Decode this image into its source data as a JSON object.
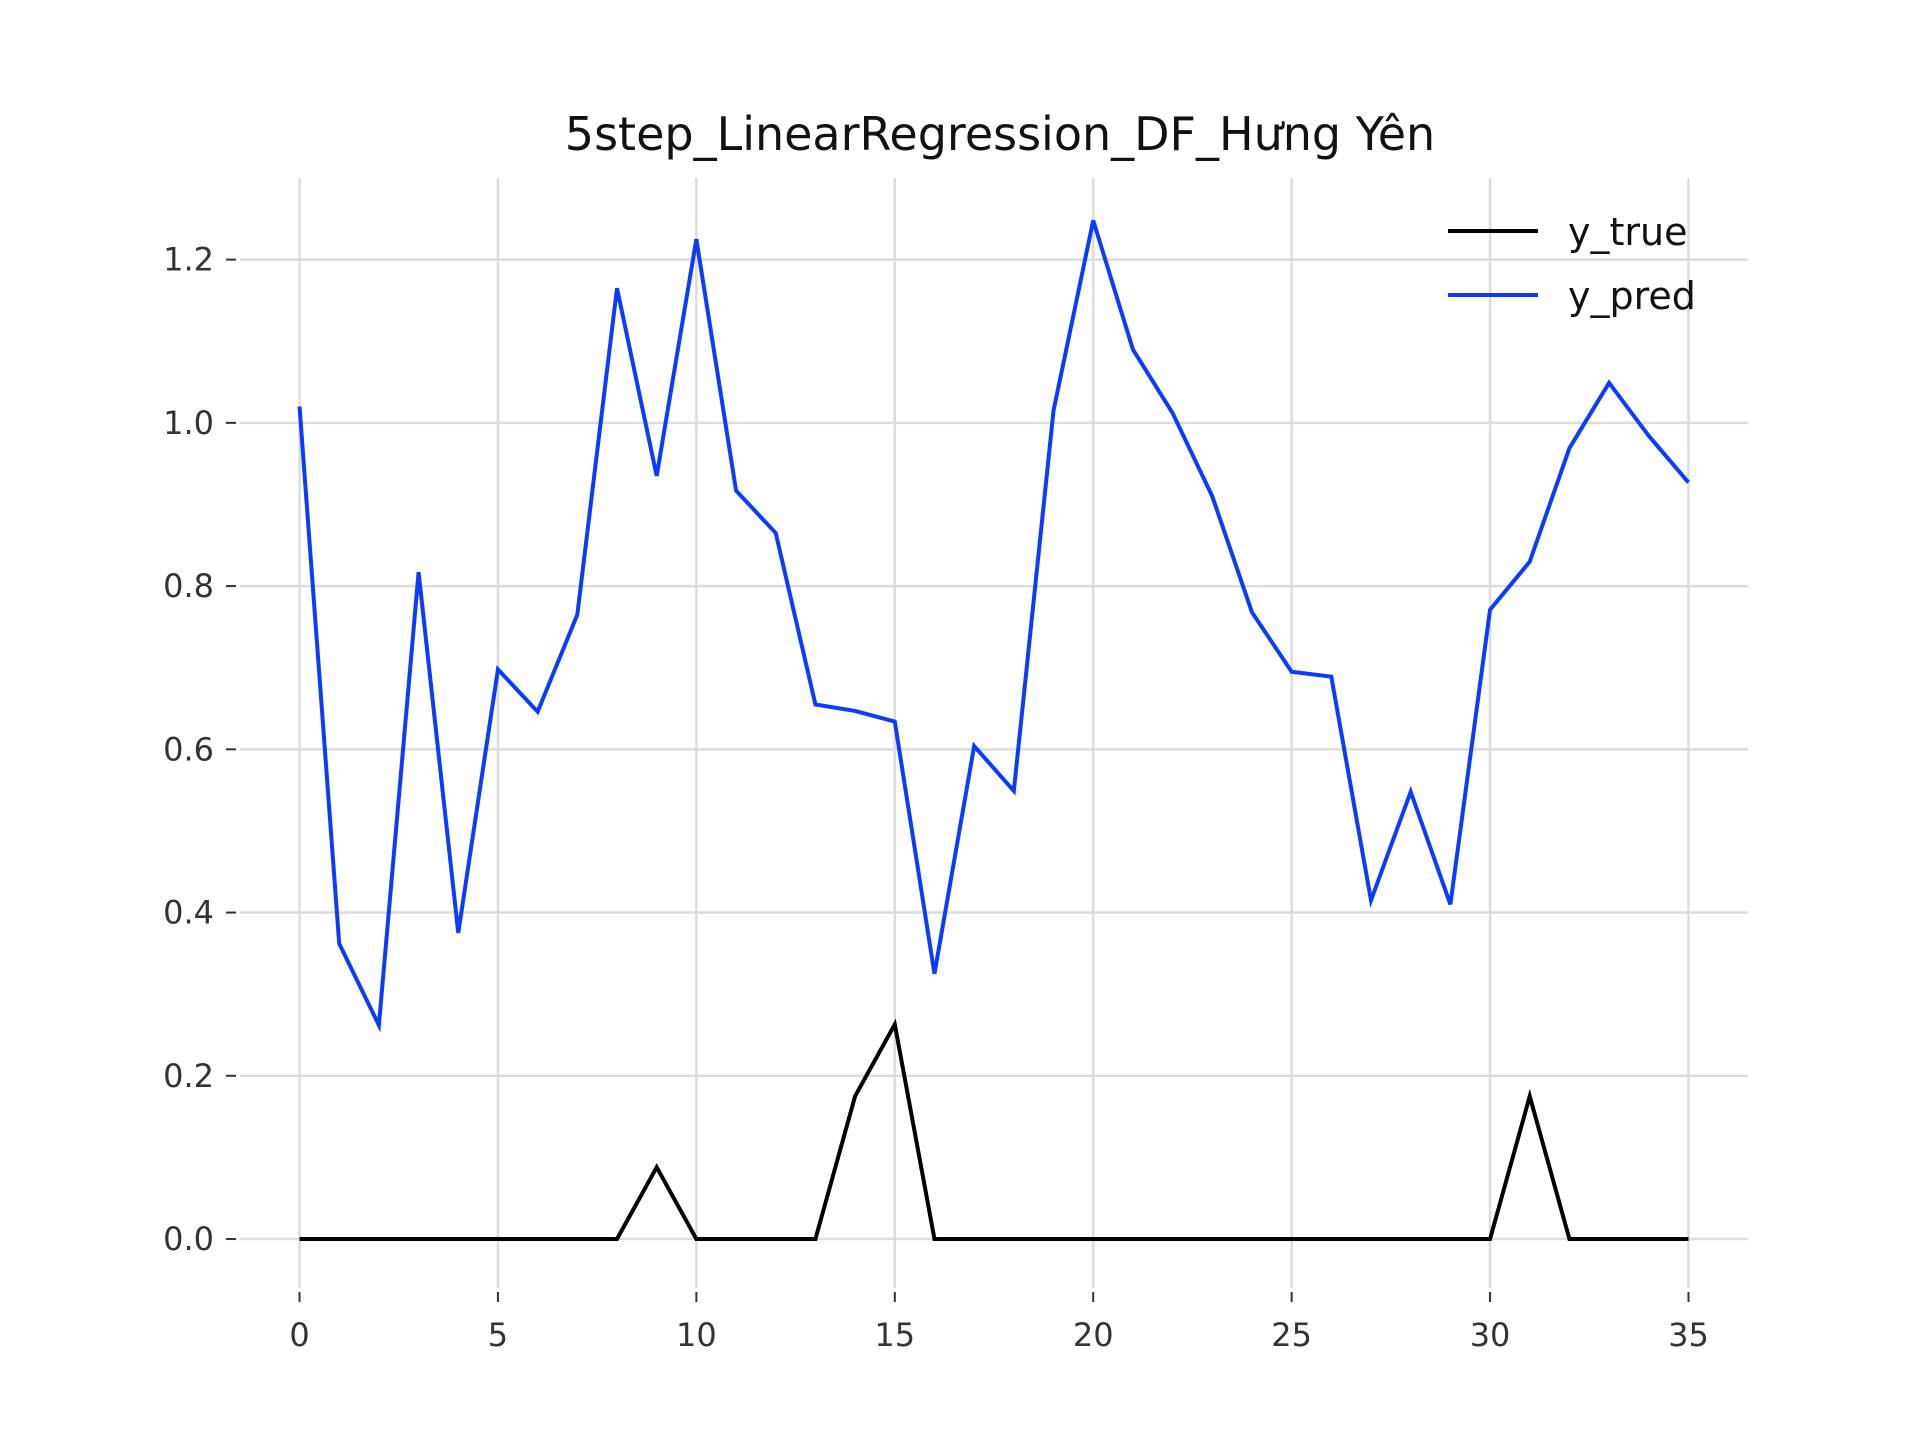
{
  "chart_data": {
    "type": "line",
    "title": "5step_LinearRegression_DF_Hưng Yên",
    "xlabel": "",
    "ylabel": "",
    "xlim": [
      -1.5,
      36.5
    ],
    "ylim": [
      -0.06,
      1.3
    ],
    "xticks": [
      0,
      5,
      10,
      15,
      20,
      25,
      30,
      35
    ],
    "xtick_labels": [
      "0",
      "5",
      "10",
      "15",
      "20",
      "25",
      "30",
      "35"
    ],
    "yticks": [
      0.0,
      0.2,
      0.4,
      0.6,
      0.8,
      1.0,
      1.2
    ],
    "ytick_labels": [
      "0.0",
      "0.2",
      "0.4",
      "0.6",
      "0.8",
      "1.0",
      "1.2"
    ],
    "grid": true,
    "legend_position": "top-right",
    "x": [
      0,
      1,
      2,
      3,
      4,
      5,
      6,
      7,
      8,
      9,
      10,
      11,
      12,
      13,
      14,
      15,
      16,
      17,
      18,
      19,
      20,
      21,
      22,
      23,
      24,
      25,
      26,
      27,
      28,
      29,
      30,
      31,
      32,
      33,
      34,
      35
    ],
    "series": [
      {
        "name": "y_true",
        "color": "#000000",
        "values": [
          0,
          0,
          0,
          0,
          0,
          0,
          0,
          0,
          0,
          0.088,
          0,
          0,
          0,
          0,
          0.175,
          0.263,
          0,
          0,
          0,
          0,
          0,
          0,
          0,
          0,
          0,
          0,
          0,
          0,
          0,
          0,
          0,
          0.175,
          0,
          0,
          0,
          0
        ]
      },
      {
        "name": "y_pred",
        "color": "#0a3cff",
        "values": [
          1.02,
          0.362,
          0.262,
          0.817,
          0.375,
          0.698,
          0.646,
          0.765,
          1.165,
          0.935,
          1.225,
          0.917,
          0.865,
          0.655,
          0.647,
          0.634,
          0.325,
          0.604,
          0.549,
          1.015,
          1.248,
          1.09,
          1.012,
          0.91,
          0.768,
          0.695,
          0.689,
          0.415,
          0.548,
          0.41,
          0.771,
          0.83,
          0.969,
          1.049,
          0.984,
          0.927
        ]
      }
    ]
  }
}
